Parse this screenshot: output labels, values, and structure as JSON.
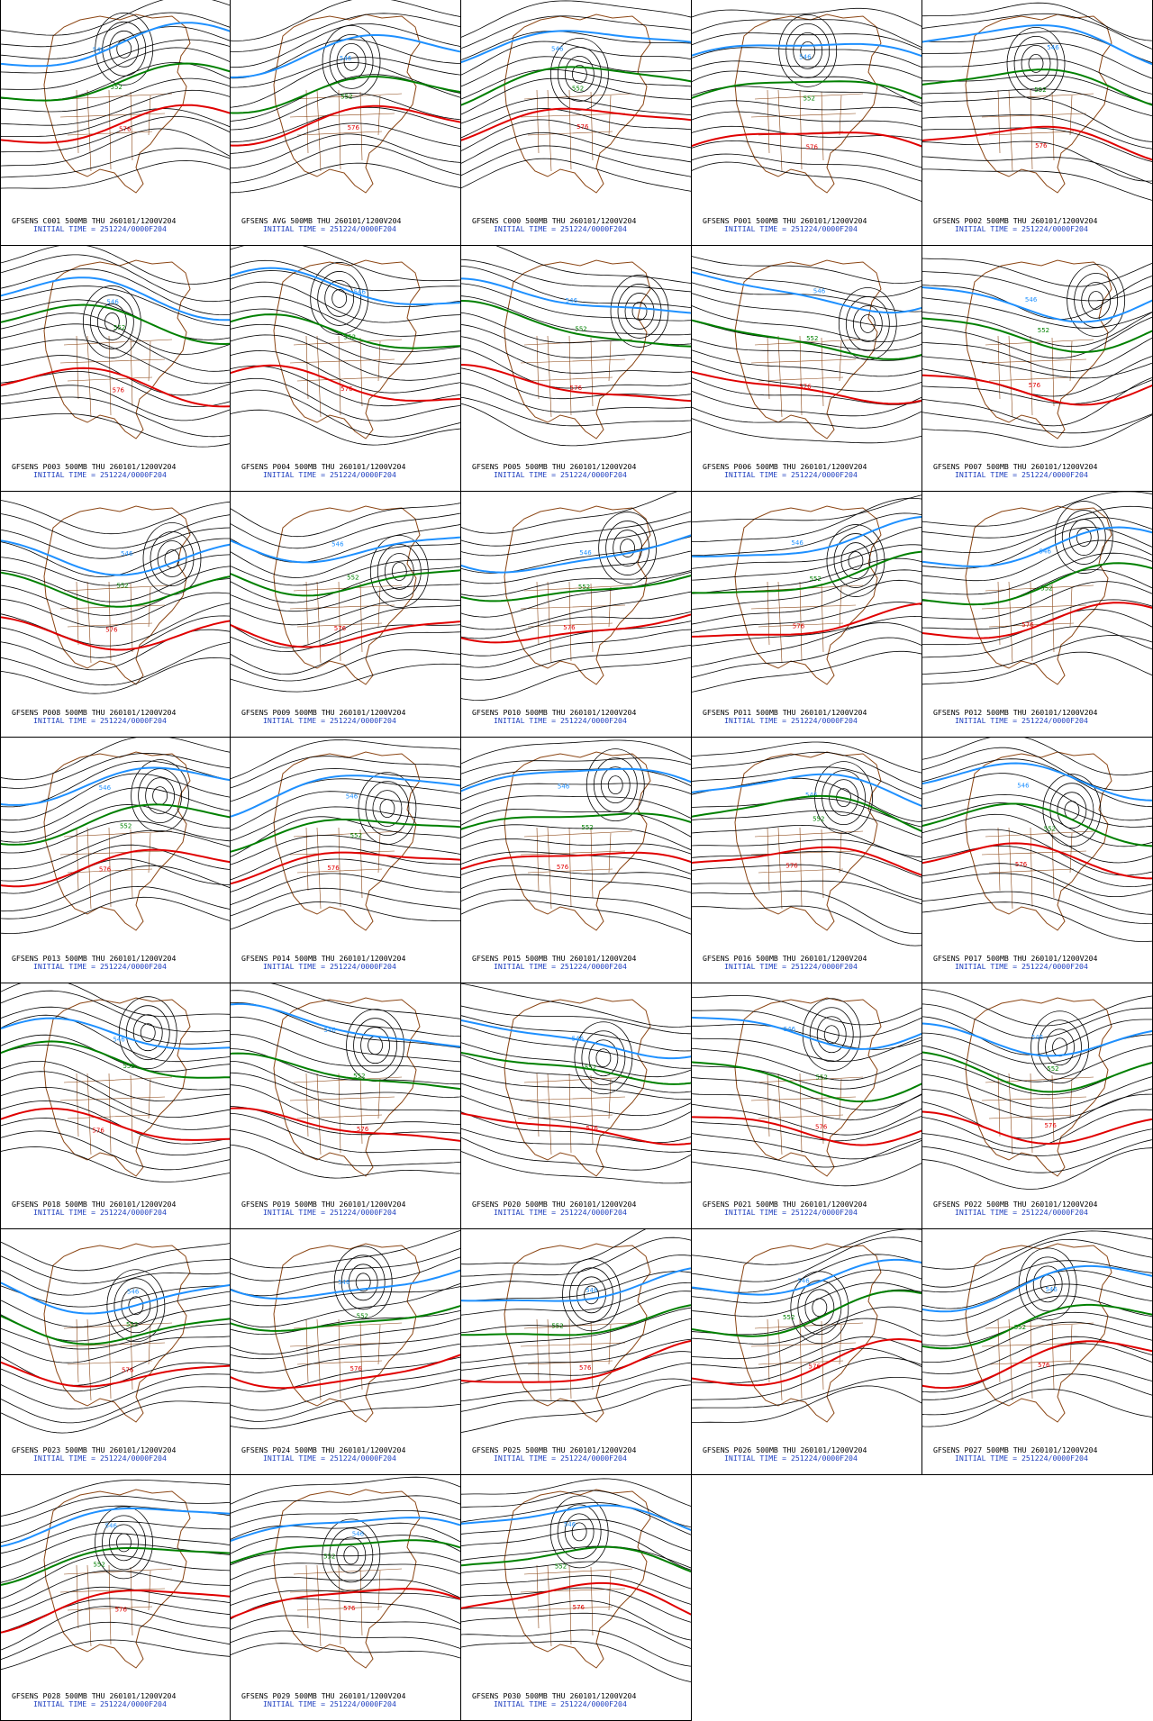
{
  "colors": {
    "contour": "#000000",
    "contour_546": "#1e90ff",
    "contour_552": "#008000",
    "contour_576": "#e00000",
    "coastline": "#8b4513",
    "caption_line1": "#000000",
    "caption_line2": "#1f3fbf"
  },
  "caption_line2": "INITIAL TIME = 251224/0000F204",
  "contour_labels": [
    "546",
    "552",
    "576"
  ],
  "panels": [
    {
      "id": "C001",
      "title": "GFSENS C001 500MB THU 260101/1200V204"
    },
    {
      "id": "AVG",
      "title": "GFSENS AVG 500MB THU 260101/1200V204"
    },
    {
      "id": "C000",
      "title": "GFSENS C000 500MB THU 260101/1200V204"
    },
    {
      "id": "P001",
      "title": "GFSENS P001 500MB THU 260101/1200V204"
    },
    {
      "id": "P002",
      "title": "GFSENS P002 500MB THU 260101/1200V204"
    },
    {
      "id": "P003",
      "title": "GFSENS P003 500MB THU 260101/1200V204"
    },
    {
      "id": "P004",
      "title": "GFSENS P004 500MB THU 260101/1200V204"
    },
    {
      "id": "P005",
      "title": "GFSENS P005 500MB THU 260101/1200V204"
    },
    {
      "id": "P006",
      "title": "GFSENS P006 500MB THU 260101/1200V204"
    },
    {
      "id": "P007",
      "title": "GFSENS P007 500MB THU 260101/1200V204"
    },
    {
      "id": "P008",
      "title": "GFSENS P008 500MB THU 260101/1200V204"
    },
    {
      "id": "P009",
      "title": "GFSENS P009 500MB THU 260101/1200V204"
    },
    {
      "id": "P010",
      "title": "GFSENS P010 500MB THU 260101/1200V204"
    },
    {
      "id": "P011",
      "title": "GFSENS P011 500MB THU 260101/1200V204"
    },
    {
      "id": "P012",
      "title": "GFSENS P012 500MB THU 260101/1200V204"
    },
    {
      "id": "P013",
      "title": "GFSENS P013 500MB THU 260101/1200V204"
    },
    {
      "id": "P014",
      "title": "GFSENS P014 500MB THU 260101/1200V204"
    },
    {
      "id": "P015",
      "title": "GFSENS P015 500MB THU 260101/1200V204"
    },
    {
      "id": "P016",
      "title": "GFSENS P016 500MB THU 260101/1200V204"
    },
    {
      "id": "P017",
      "title": "GFSENS P017 500MB THU 260101/1200V204"
    },
    {
      "id": "P018",
      "title": "GFSENS P018 500MB THU 260101/1200V204"
    },
    {
      "id": "P019",
      "title": "GFSENS P019 500MB THU 260101/1200V204"
    },
    {
      "id": "P020",
      "title": "GFSENS P020 500MB THU 260101/1200V204"
    },
    {
      "id": "P021",
      "title": "GFSENS P021 500MB THU 260101/1200V204"
    },
    {
      "id": "P022",
      "title": "GFSENS P022 500MB THU 260101/1200V204"
    },
    {
      "id": "P023",
      "title": "GFSENS P023 500MB THU 260101/1200V204"
    },
    {
      "id": "P024",
      "title": "GFSENS P024 500MB THU 260101/1200V204"
    },
    {
      "id": "P025",
      "title": "GFSENS P025 500MB THU 260101/1200V204"
    },
    {
      "id": "P026",
      "title": "GFSENS P026 500MB THU 260101/1200V204"
    },
    {
      "id": "P027",
      "title": "GFSENS P027 500MB THU 260101/1200V204"
    },
    {
      "id": "P028",
      "title": "GFSENS P028 500MB THU 260101/1200V204"
    },
    {
      "id": "P029",
      "title": "GFSENS P029 500MB THU 260101/1200V204"
    },
    {
      "id": "P030",
      "title": "GFSENS P030 500MB THU 260101/1200V204"
    }
  ]
}
